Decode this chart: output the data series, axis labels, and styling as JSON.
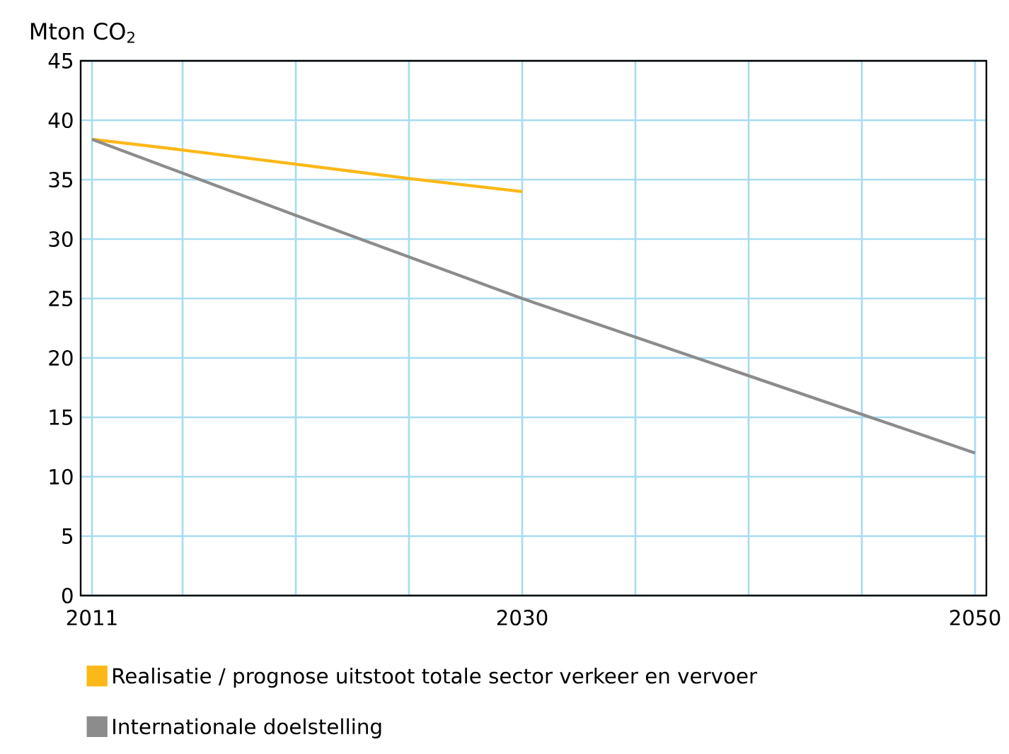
{
  "chart_data": {
    "type": "line",
    "ylabel": "Mton CO$_{2}$",
    "xlim": [
      2010.5,
      2050.5
    ],
    "ylim": [
      0,
      45
    ],
    "xticks": [
      2011,
      {
        "value": 2015,
        "label": null
      },
      {
        "value": 2020,
        "label": null
      },
      {
        "value": 2025,
        "label": null
      },
      2030,
      {
        "value": 2035,
        "label": null
      },
      {
        "value": 2040,
        "label": null
      },
      {
        "value": 2045,
        "label": null
      },
      2050
    ],
    "yticks": [
      0,
      5,
      10,
      15,
      20,
      25,
      30,
      35,
      40,
      45
    ],
    "grid": true,
    "legend": "bottom",
    "marker": "none",
    "line_style": "solid",
    "series": [
      {
        "name": "Realisatie / prognose uitstoot totale sector verkeer en vervoer",
        "color": "#fbb817",
        "x": [
          2011,
          2015,
          2020,
          2025,
          2030
        ],
        "values": [
          38.4,
          37.5,
          36.3,
          35.1,
          34.0
        ]
      },
      {
        "name": "Internationale doelstelling",
        "color": "#8c8c8c",
        "x": [
          2011,
          2020,
          2025,
          2030,
          2040,
          2050
        ],
        "values": [
          38.4,
          32.0,
          28.5,
          25.0,
          18.5,
          12.0
        ]
      }
    ]
  }
}
